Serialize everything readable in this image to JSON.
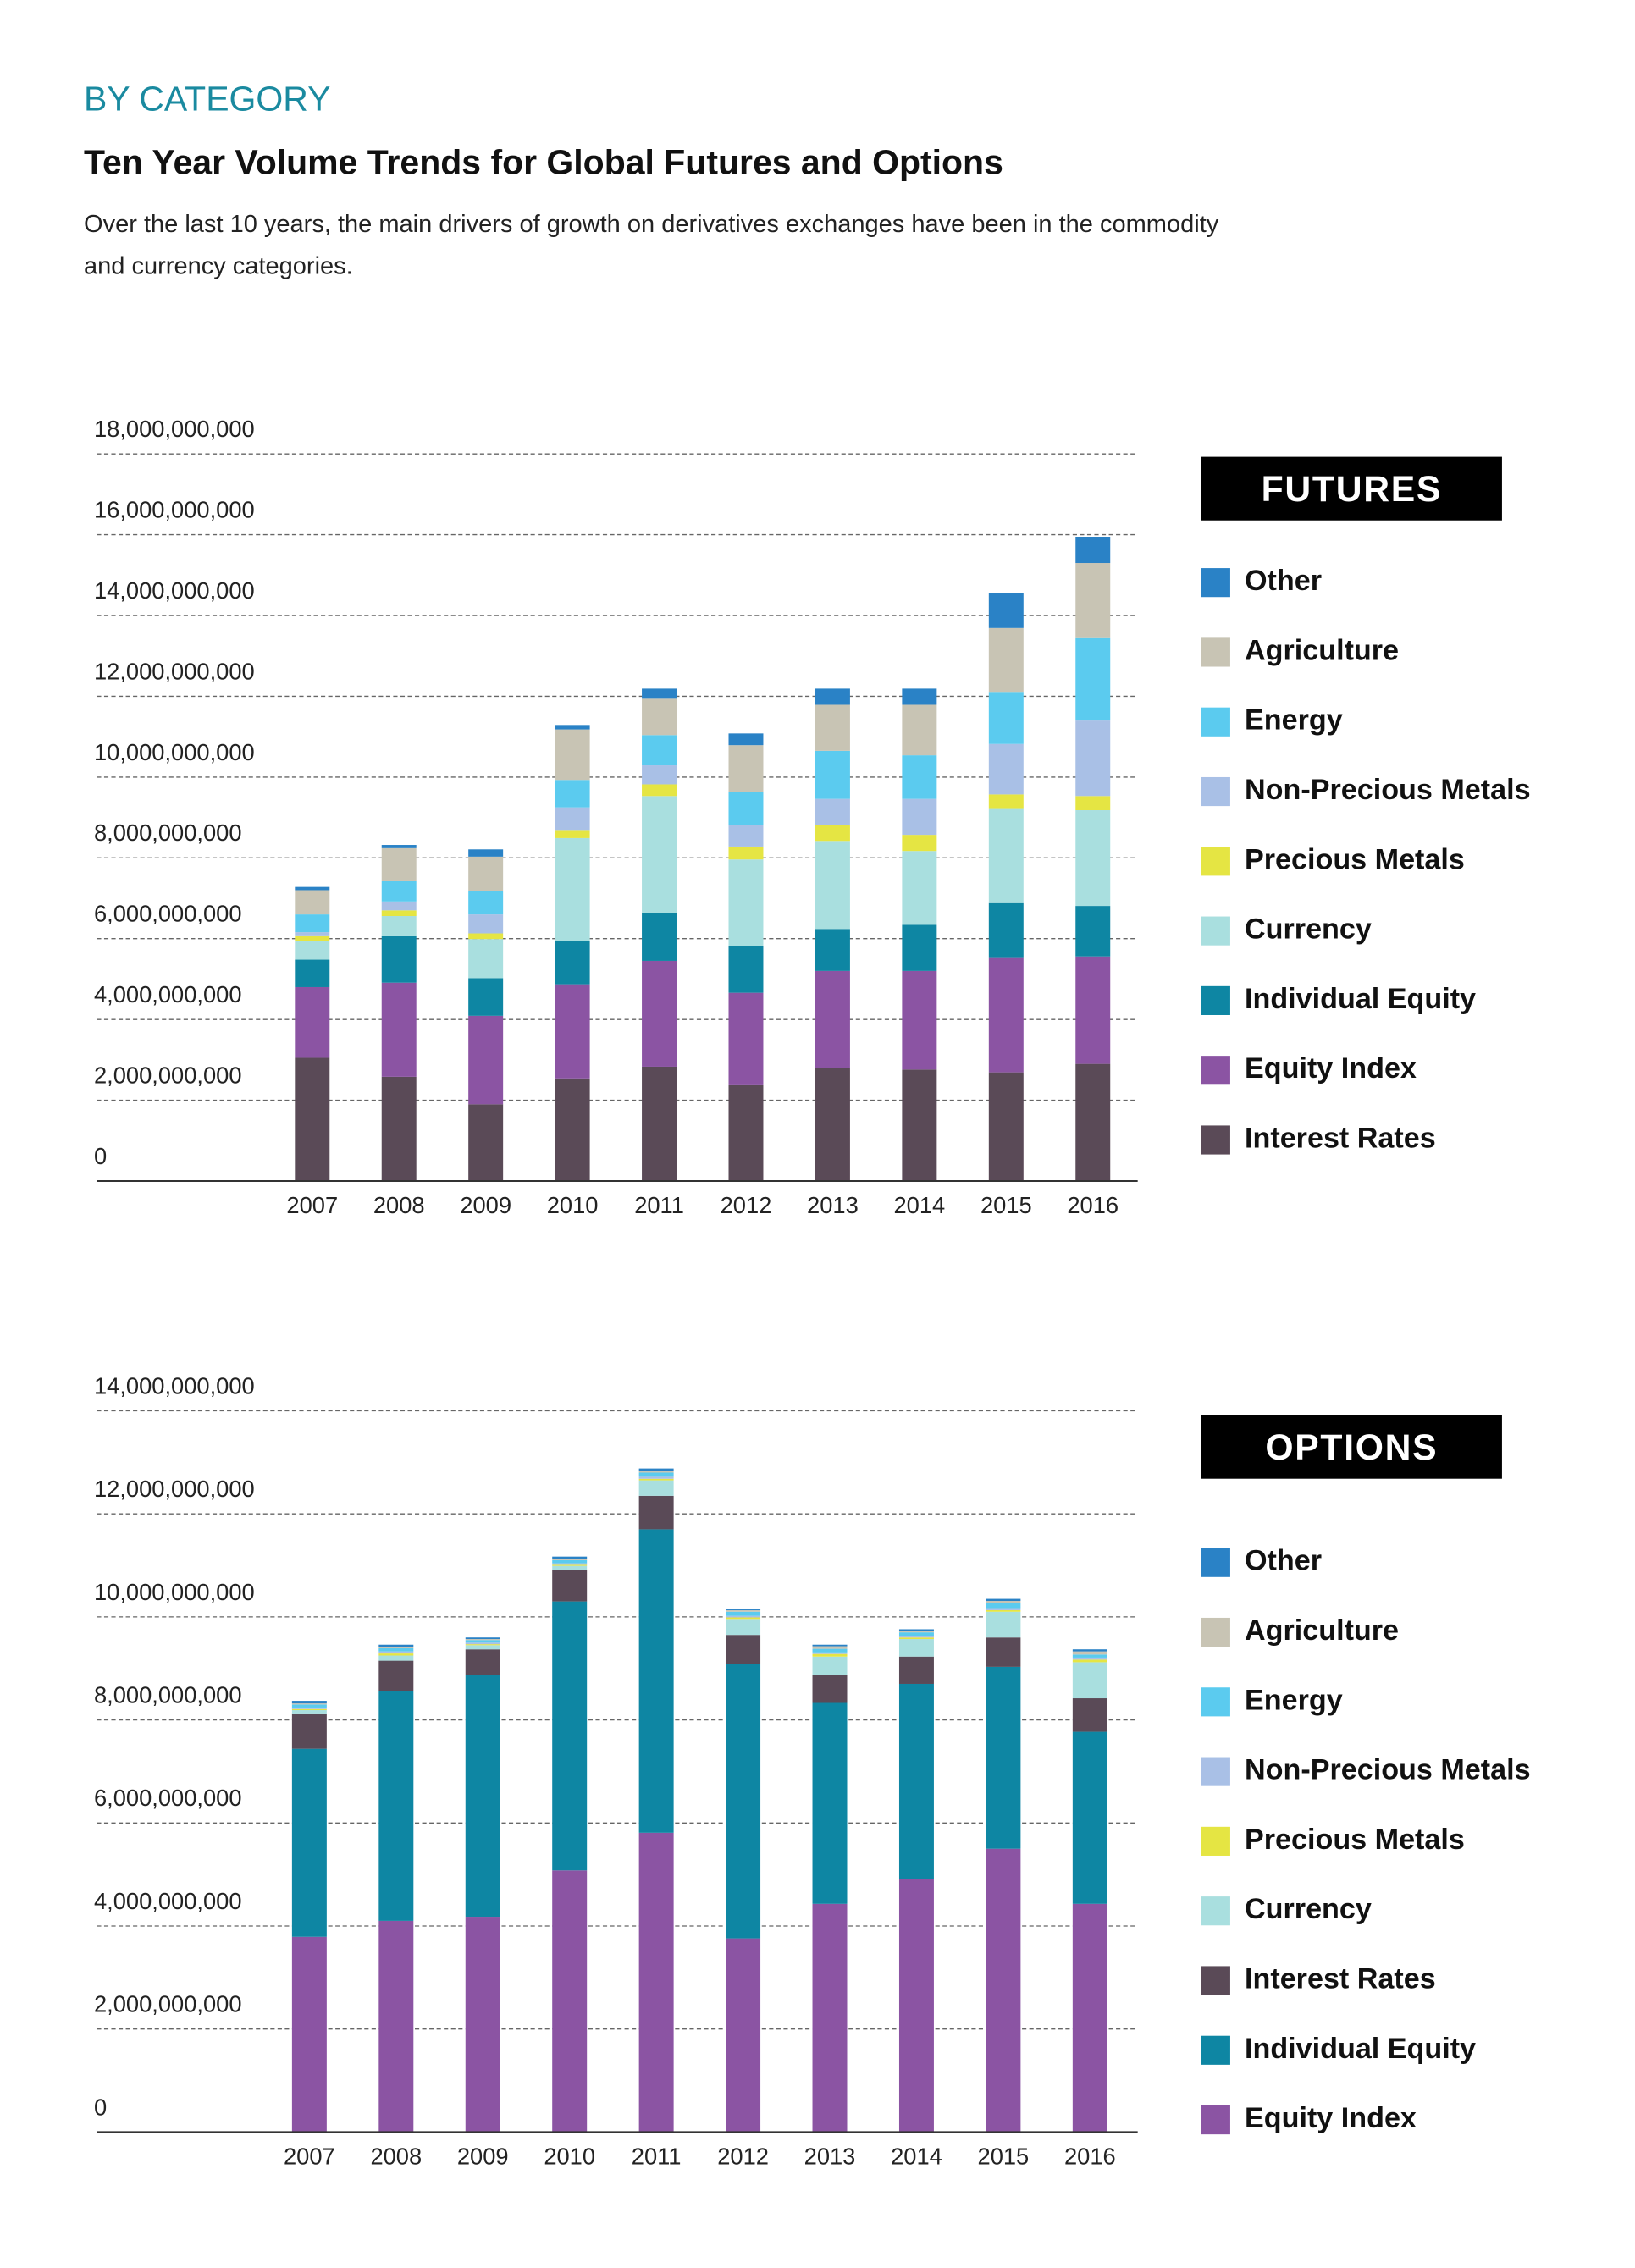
{
  "header": {
    "kicker": "BY CATEGORY",
    "title": "Ten Year Volume Trends for Global Futures and Options",
    "subtitle": [
      "Over the last 10 years, the main drivers of growth on derivatives exchanges have been in the commodity",
      "and currency categories."
    ]
  },
  "chart_data": [
    {
      "type": "bar",
      "stacked": true,
      "title": "FUTURES",
      "grid": true,
      "categories": [
        "2007",
        "2008",
        "2009",
        "2010",
        "2011",
        "2012",
        "2013",
        "2014",
        "2015",
        "2016"
      ],
      "ylim": [
        0,
        18000000000
      ],
      "yticks": [
        0,
        {
          "value": 2000000000,
          "label": "2,000,000,000"
        },
        {
          "value": 4000000000,
          "label": "4,000,000,000"
        },
        {
          "value": 6000000000,
          "label": "6,000,000,000"
        },
        {
          "value": 8000000000,
          "label": "8,000,000,000"
        },
        {
          "value": 10000000000,
          "label": "10,000,000,000"
        },
        {
          "value": 12000000000,
          "label": "12,000,000,000"
        },
        {
          "value": 14000000000,
          "label": "14,000,000,000"
        },
        {
          "value": 16000000000,
          "label": "16,000,000,000"
        },
        {
          "value": 18000000000,
          "label": "18,000,000,000"
        }
      ],
      "series": [
        {
          "name": "Interest Rates",
          "color": "#5a4a57",
          "values": [
            3050000000,
            2580000000,
            1900000000,
            2540000000,
            2830000000,
            2370000000,
            2800000000,
            2760000000,
            2690000000,
            2900000000
          ]
        },
        {
          "name": "Equity Index",
          "color": "#8b54a3",
          "values": [
            1750000000,
            2330000000,
            2190000000,
            2330000000,
            2620000000,
            2290000000,
            2400000000,
            2440000000,
            2830000000,
            2660000000
          ]
        },
        {
          "name": "Individual Equity",
          "color": "#0e86a3",
          "values": [
            680000000,
            1150000000,
            930000000,
            1080000000,
            1180000000,
            1150000000,
            1040000000,
            1140000000,
            1360000000,
            1250000000
          ]
        },
        {
          "name": "Currency",
          "color": "#a9dfdf",
          "values": [
            470000000,
            500000000,
            970000000,
            2540000000,
            2900000000,
            2150000000,
            2180000000,
            1830000000,
            2330000000,
            2370000000
          ]
        },
        {
          "name": "Precious Metals",
          "color": "#e5e543",
          "values": [
            110000000,
            140000000,
            140000000,
            180000000,
            290000000,
            320000000,
            400000000,
            400000000,
            360000000,
            350000000
          ]
        },
        {
          "name": "Non-Precious Metals",
          "color": "#a9c0e6",
          "values": [
            100000000,
            220000000,
            470000000,
            580000000,
            470000000,
            540000000,
            640000000,
            890000000,
            1250000000,
            1870000000
          ]
        },
        {
          "name": "Energy",
          "color": "#5bcbef",
          "values": [
            440000000,
            500000000,
            570000000,
            680000000,
            750000000,
            820000000,
            1190000000,
            1080000000,
            1290000000,
            2040000000
          ]
        },
        {
          "name": "Agriculture",
          "color": "#c8c4b4",
          "values": [
            600000000,
            820000000,
            860000000,
            1250000000,
            900000000,
            1150000000,
            1140000000,
            1250000000,
            1580000000,
            1860000000
          ]
        },
        {
          "name": "Other",
          "color": "#2a82c6",
          "values": [
            80000000,
            80000000,
            180000000,
            110000000,
            250000000,
            290000000,
            400000000,
            400000000,
            860000000,
            650000000
          ]
        }
      ]
    },
    {
      "type": "bar",
      "stacked": true,
      "title": "OPTIONS",
      "grid": true,
      "categories": [
        "2007",
        "2008",
        "2009",
        "2010",
        "2011",
        "2012",
        "2013",
        "2014",
        "2015",
        "2016"
      ],
      "ylim": [
        0,
        14000000000
      ],
      "yticks": [
        0,
        {
          "value": 2000000000,
          "label": "2,000,000,000"
        },
        {
          "value": 4000000000,
          "label": "4,000,000,000"
        },
        {
          "value": 6000000000,
          "label": "6,000,000,000"
        },
        {
          "value": 8000000000,
          "label": "8,000,000,000"
        },
        {
          "value": 10000000000,
          "label": "10,000,000,000"
        },
        {
          "value": 12000000000,
          "label": "12,000,000,000"
        },
        {
          "value": 14000000000,
          "label": "14,000,000,000"
        }
      ],
      "series": [
        {
          "name": "Equity Index",
          "color": "#8b54a3",
          "values": [
            3790000000,
            4100000000,
            4180000000,
            5080000000,
            5810000000,
            3760000000,
            4430000000,
            4910000000,
            5500000000,
            4430000000
          ]
        },
        {
          "name": "Individual Equity",
          "color": "#0e86a3",
          "values": [
            3650000000,
            4460000000,
            4690000000,
            5220000000,
            5890000000,
            5330000000,
            3900000000,
            3790000000,
            3530000000,
            3340000000
          ]
        },
        {
          "name": "Interest Rates",
          "color": "#5a4a57",
          "values": [
            670000000,
            590000000,
            500000000,
            610000000,
            650000000,
            560000000,
            540000000,
            530000000,
            570000000,
            650000000
          ]
        },
        {
          "name": "Currency",
          "color": "#a9dfdf",
          "values": [
            80000000,
            100000000,
            80000000,
            80000000,
            300000000,
            310000000,
            360000000,
            340000000,
            500000000,
            700000000
          ]
        },
        {
          "name": "Precious Metals",
          "color": "#e5e543",
          "values": [
            20000000,
            40000000,
            20000000,
            20000000,
            30000000,
            30000000,
            50000000,
            30000000,
            30000000,
            50000000
          ]
        },
        {
          "name": "Non-Precious Metals",
          "color": "#a9c0e6",
          "values": [
            30000000,
            40000000,
            30000000,
            30000000,
            40000000,
            30000000,
            30000000,
            30000000,
            40000000,
            40000000
          ]
        },
        {
          "name": "Energy",
          "color": "#5bcbef",
          "values": [
            60000000,
            60000000,
            50000000,
            60000000,
            80000000,
            80000000,
            70000000,
            70000000,
            100000000,
            60000000
          ]
        },
        {
          "name": "Agriculture",
          "color": "#c8c4b4",
          "values": [
            20000000,
            30000000,
            20000000,
            30000000,
            30000000,
            30000000,
            50000000,
            30000000,
            40000000,
            60000000
          ]
        },
        {
          "name": "Other",
          "color": "#2a82c6",
          "values": [
            50000000,
            40000000,
            30000000,
            40000000,
            50000000,
            30000000,
            30000000,
            30000000,
            40000000,
            40000000
          ]
        }
      ]
    }
  ]
}
